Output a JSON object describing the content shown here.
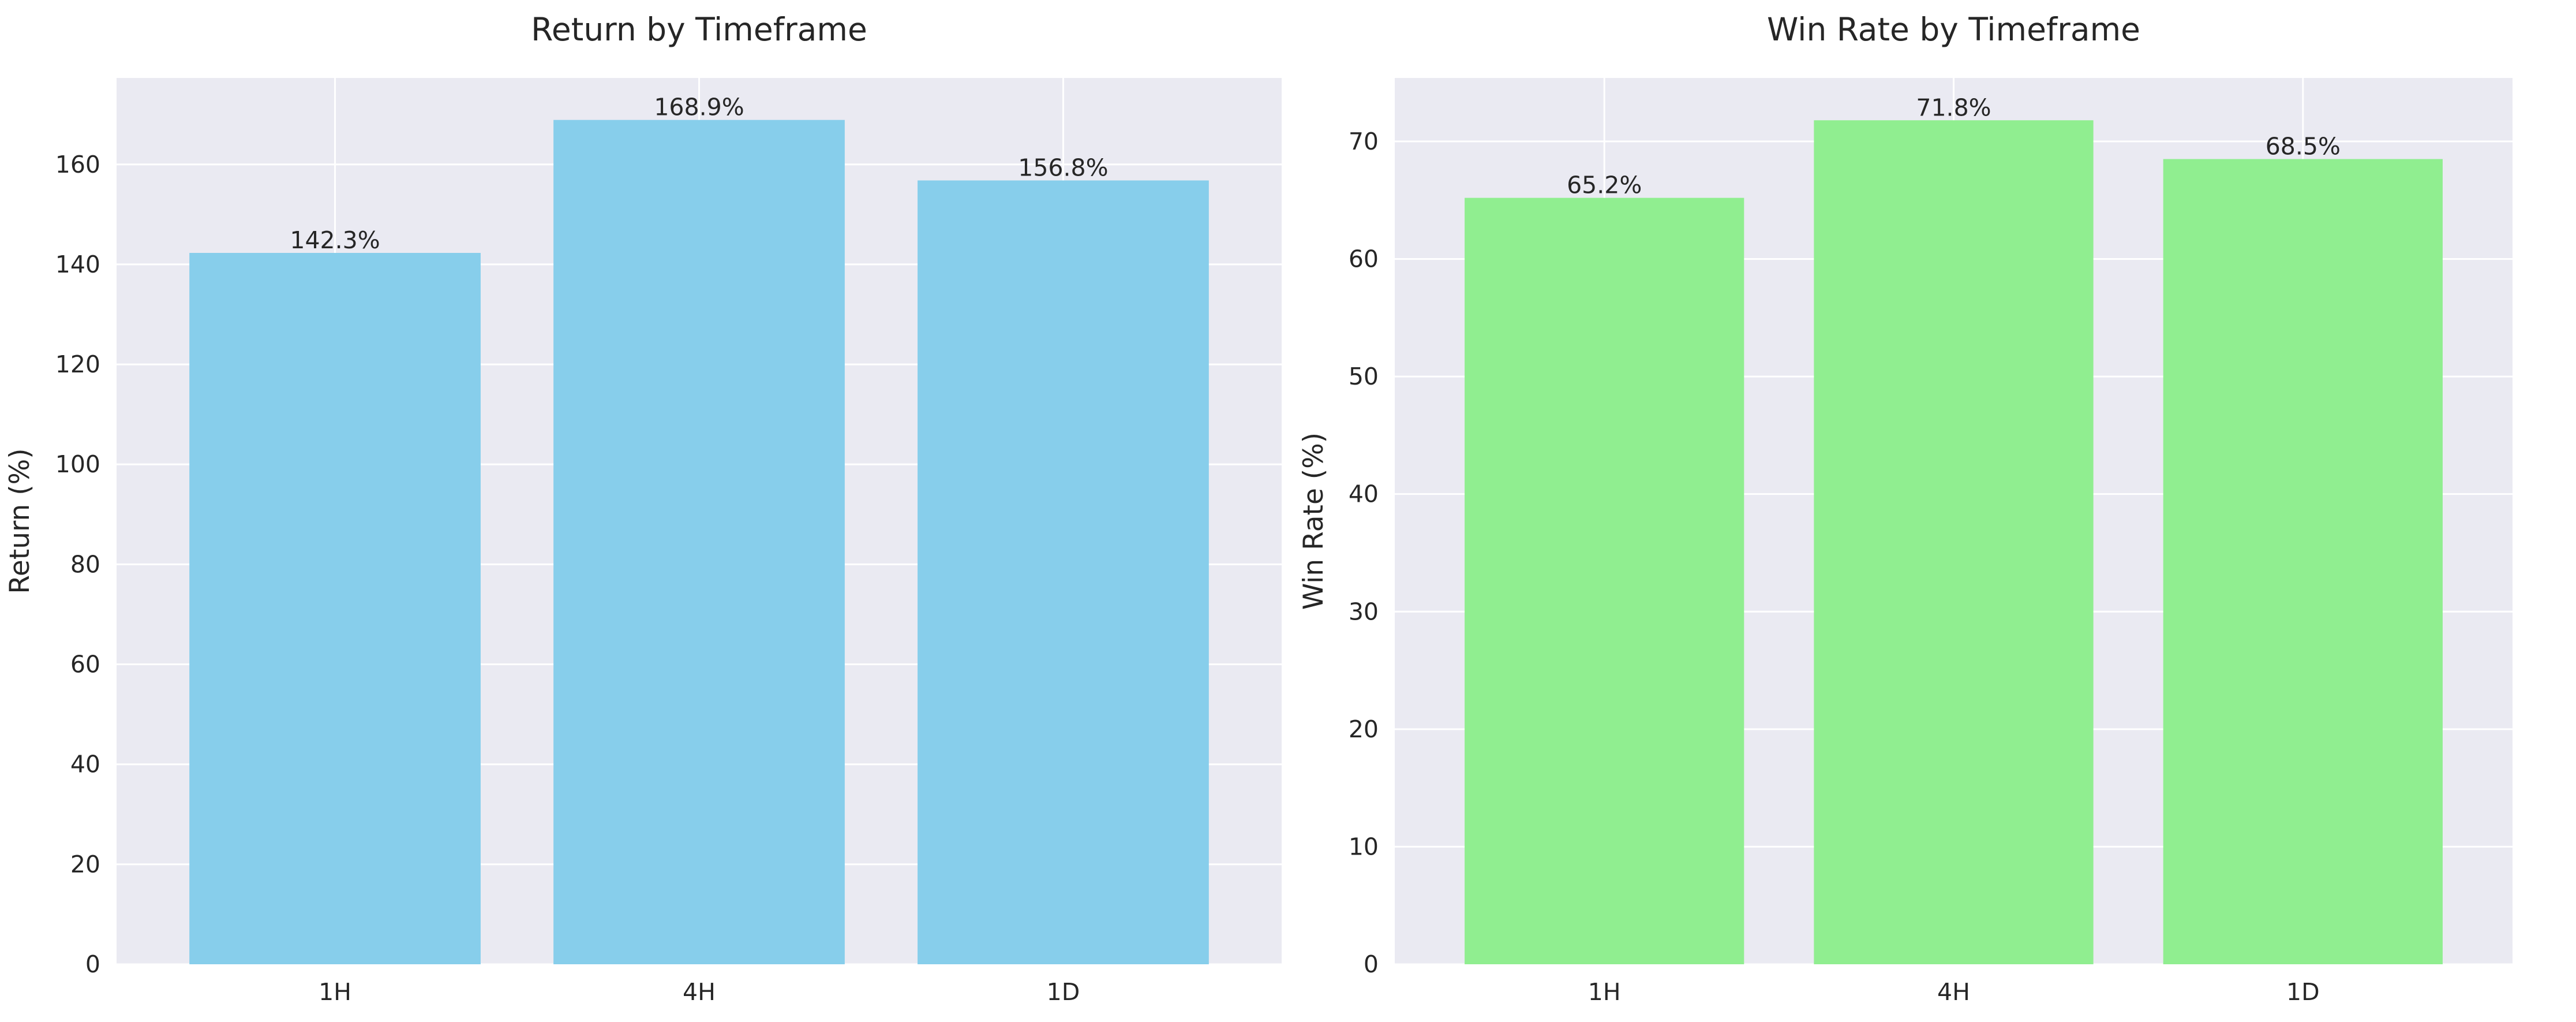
{
  "style": {
    "plot_background": "#eaeaf2",
    "grid_color": "#ffffff",
    "text_color": "#262626"
  },
  "chart_data": [
    {
      "type": "bar",
      "title": "Return by Timeframe",
      "xlabel": "",
      "ylabel": "Return (%)",
      "categories": [
        "1H",
        "4H",
        "1D"
      ],
      "values": [
        142.3,
        168.9,
        156.8
      ],
      "value_labels": [
        "142.3%",
        "168.9%",
        "156.8%"
      ],
      "ylim": [
        0,
        177.3
      ],
      "yticks": [
        0,
        20,
        40,
        60,
        80,
        100,
        120,
        140,
        160
      ],
      "grid": true,
      "bar_color": "#87ceeb"
    },
    {
      "type": "bar",
      "title": "Win Rate by Timeframe",
      "xlabel": "",
      "ylabel": "Win Rate (%)",
      "categories": [
        "1H",
        "4H",
        "1D"
      ],
      "values": [
        65.2,
        71.8,
        68.5
      ],
      "value_labels": [
        "65.2%",
        "71.8%",
        "68.5%"
      ],
      "ylim": [
        0,
        75.4
      ],
      "yticks": [
        0,
        10,
        20,
        30,
        40,
        50,
        60,
        70
      ],
      "grid": true,
      "bar_color": "#90ee90"
    }
  ]
}
